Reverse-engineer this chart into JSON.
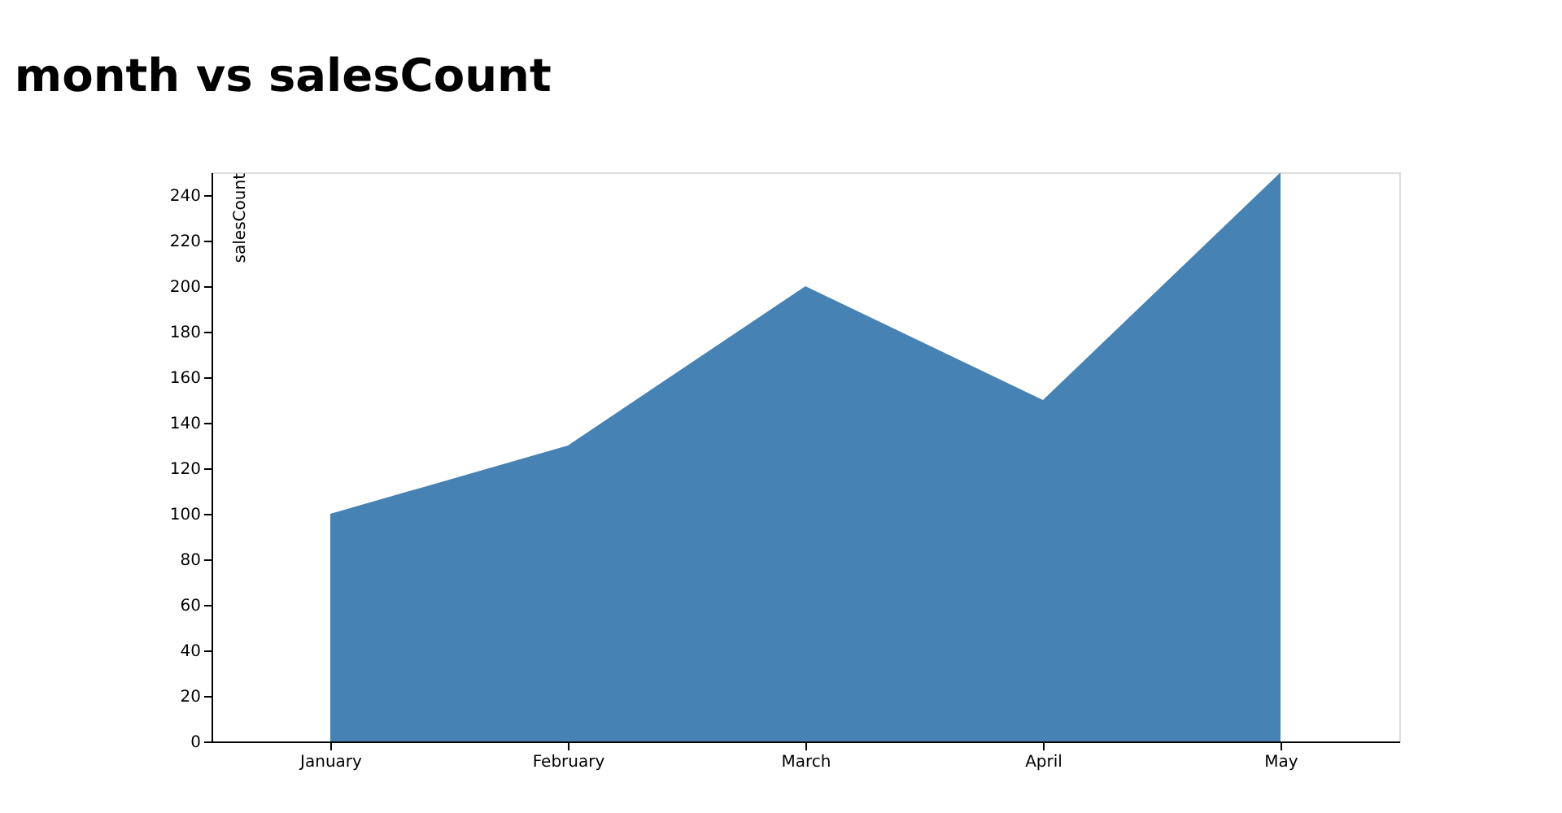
{
  "chart_data": {
    "type": "area",
    "title": "month vs salesCount",
    "ylabel": "salesCount",
    "categories": [
      "January",
      "February",
      "March",
      "April",
      "May"
    ],
    "series": [
      {
        "color": "#4682b4",
        "values": [
          100,
          130,
          200,
          150,
          250
        ]
      }
    ],
    "ylim": [
      0,
      250
    ],
    "yticks": [
      0,
      20,
      40,
      60,
      80,
      100,
      120,
      140,
      160,
      180,
      200,
      220,
      240
    ],
    "grid": false
  }
}
